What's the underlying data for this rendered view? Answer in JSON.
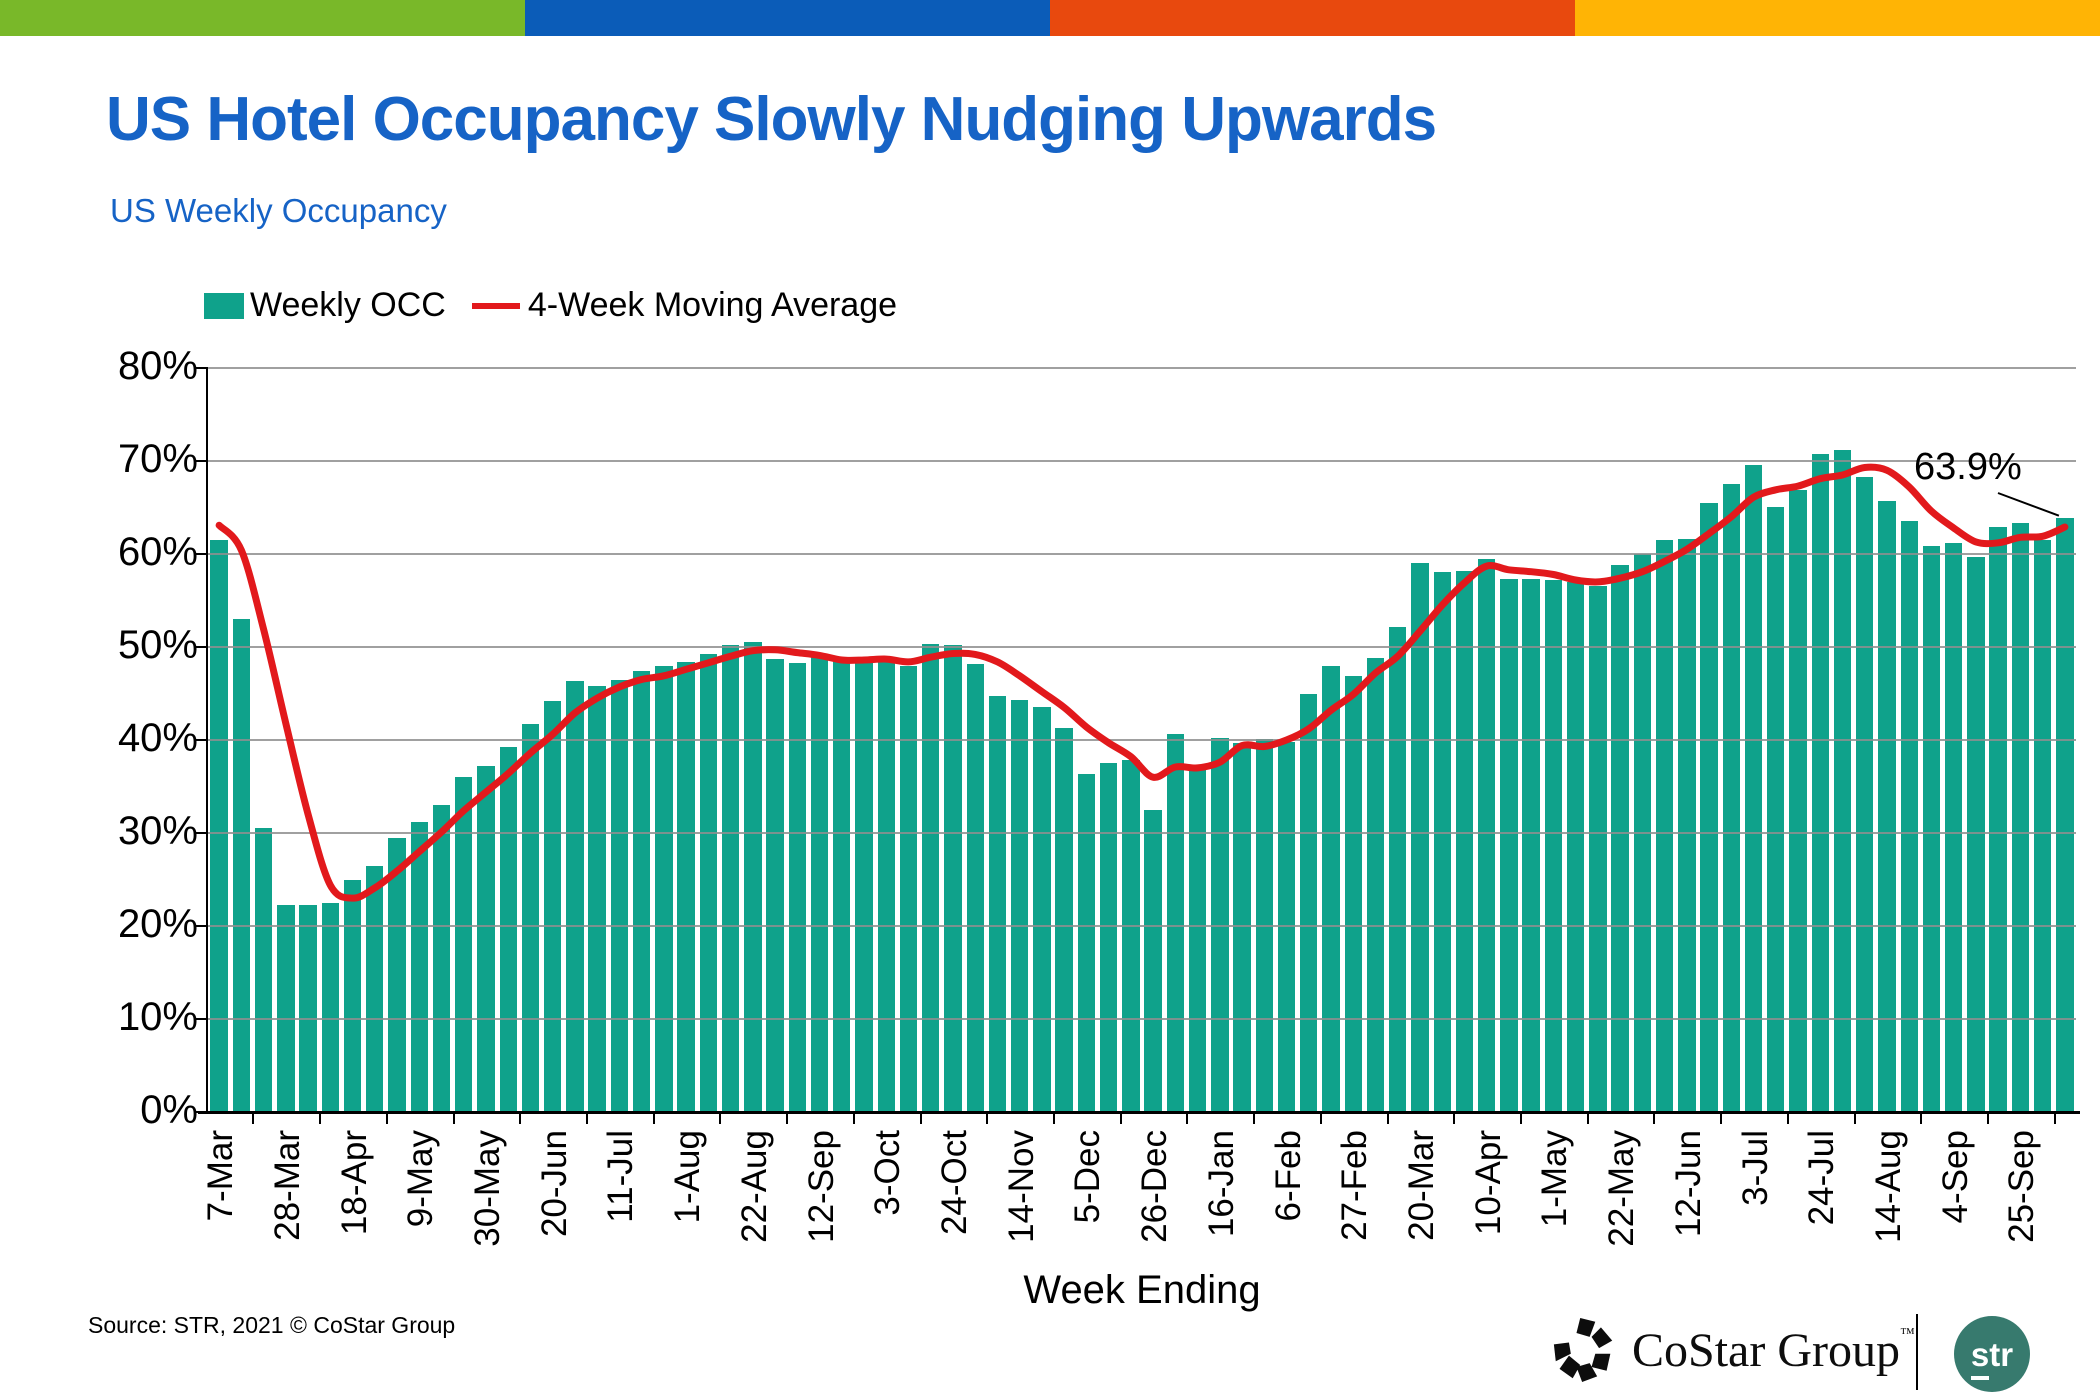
{
  "top_bar": {
    "segments": [
      {
        "name": "green",
        "color": "#79B829"
      },
      {
        "name": "blue",
        "color": "#0B5CB8"
      },
      {
        "name": "orange",
        "color": "#E8490E"
      },
      {
        "name": "yellow",
        "color": "#FFB405"
      }
    ]
  },
  "header": {
    "title": "US Hotel Occupancy Slowly Nudging Upwards",
    "subtitle": "US Weekly Occupancy"
  },
  "legend": [
    {
      "label": "Weekly OCC",
      "swatch": "square",
      "color": "#0FA28B"
    },
    {
      "label": "4-Week Moving Average",
      "swatch": "line",
      "color": "#E2191C"
    }
  ],
  "chart_data": {
    "type": "bar",
    "title": "US Weekly Occupancy",
    "xlabel": "Week Ending",
    "ylabel": "",
    "ylim": [
      0,
      80
    ],
    "grid": true,
    "yticks": [
      "0%",
      "10%",
      "20%",
      "30%",
      "40%",
      "50%",
      "60%",
      "70%",
      "80%"
    ],
    "x_tick_labels": [
      "7-Mar",
      "28-Mar",
      "18-Apr",
      "9-May",
      "30-May",
      "20-Jun",
      "11-Jul",
      "1-Aug",
      "22-Aug",
      "12-Sep",
      "3-Oct",
      "24-Oct",
      "14-Nov",
      "5-Dec",
      "26-Dec",
      "16-Jan",
      "6-Feb",
      "27-Feb",
      "20-Mar",
      "10-Apr",
      "1-May",
      "22-May",
      "12-Jun",
      "3-Jul",
      "24-Jul",
      "14-Aug",
      "4-Sep",
      "25-Sep"
    ],
    "label_every": 3,
    "series": [
      {
        "name": "Weekly OCC",
        "type": "bar",
        "color": "#0FA28B",
        "values": [
          61.5,
          53.0,
          30.5,
          22.3,
          22.3,
          22.5,
          24.9,
          26.5,
          29.5,
          31.2,
          33.0,
          36.0,
          37.2,
          39.3,
          41.7,
          44.2,
          46.3,
          45.8,
          46.5,
          47.4,
          48.0,
          48.4,
          49.2,
          50.2,
          50.5,
          48.7,
          48.3,
          49.0,
          48.5,
          48.5,
          48.6,
          48.0,
          50.3,
          50.2,
          48.2,
          44.7,
          44.3,
          43.5,
          41.3,
          36.3,
          37.5,
          37.8,
          32.5,
          40.7,
          37.0,
          40.2,
          39.7,
          40.1,
          39.8,
          45.0,
          48.0,
          46.9,
          48.8,
          52.2,
          59.0,
          58.1,
          58.2,
          59.5,
          57.3,
          57.3,
          57.2,
          57.0,
          56.6,
          58.8,
          60.0,
          61.5,
          61.6,
          65.5,
          67.5,
          69.6,
          65.1,
          66.9,
          70.8,
          71.2,
          68.3,
          65.7,
          63.5,
          60.9,
          61.2,
          59.7,
          62.9,
          63.3,
          61.5,
          63.9
        ]
      },
      {
        "name": "4-Week Moving Average",
        "type": "line",
        "color": "#E2191C",
        "values": [
          63.1,
          60.4,
          51.9,
          41.8,
          32.0,
          24.4,
          23.0,
          24.1,
          25.9,
          28.0,
          30.1,
          32.4,
          34.4,
          36.4,
          38.6,
          40.6,
          42.9,
          44.5,
          45.7,
          46.5,
          46.9,
          47.6,
          48.3,
          49.0,
          49.6,
          49.7,
          49.4,
          49.1,
          48.6,
          48.6,
          48.7,
          48.4,
          48.9,
          49.3,
          49.2,
          48.4,
          46.9,
          45.2,
          43.5,
          41.4,
          39.7,
          38.2,
          36.0,
          37.1,
          37.0,
          37.6,
          39.4,
          39.3,
          40.0,
          41.2,
          43.2,
          44.9,
          47.2,
          49.0,
          51.7,
          54.5,
          56.9,
          58.7,
          58.3,
          58.1,
          57.8,
          57.2,
          57.0,
          57.4,
          58.1,
          59.2,
          60.5,
          62.2,
          64.0,
          66.1,
          66.9,
          67.3,
          68.1,
          68.5,
          69.3,
          69.0,
          67.2,
          64.6,
          62.8,
          61.3,
          61.2,
          61.8,
          61.9,
          62.9
        ]
      }
    ],
    "annotation": {
      "text": "63.9%",
      "target": "last-bar"
    }
  },
  "footer": {
    "source": "Source: STR, 2021 © CoStar Group",
    "costar_logo_text": "CoStar Group",
    "costar_tm": "™",
    "str_logo_text": "str"
  }
}
